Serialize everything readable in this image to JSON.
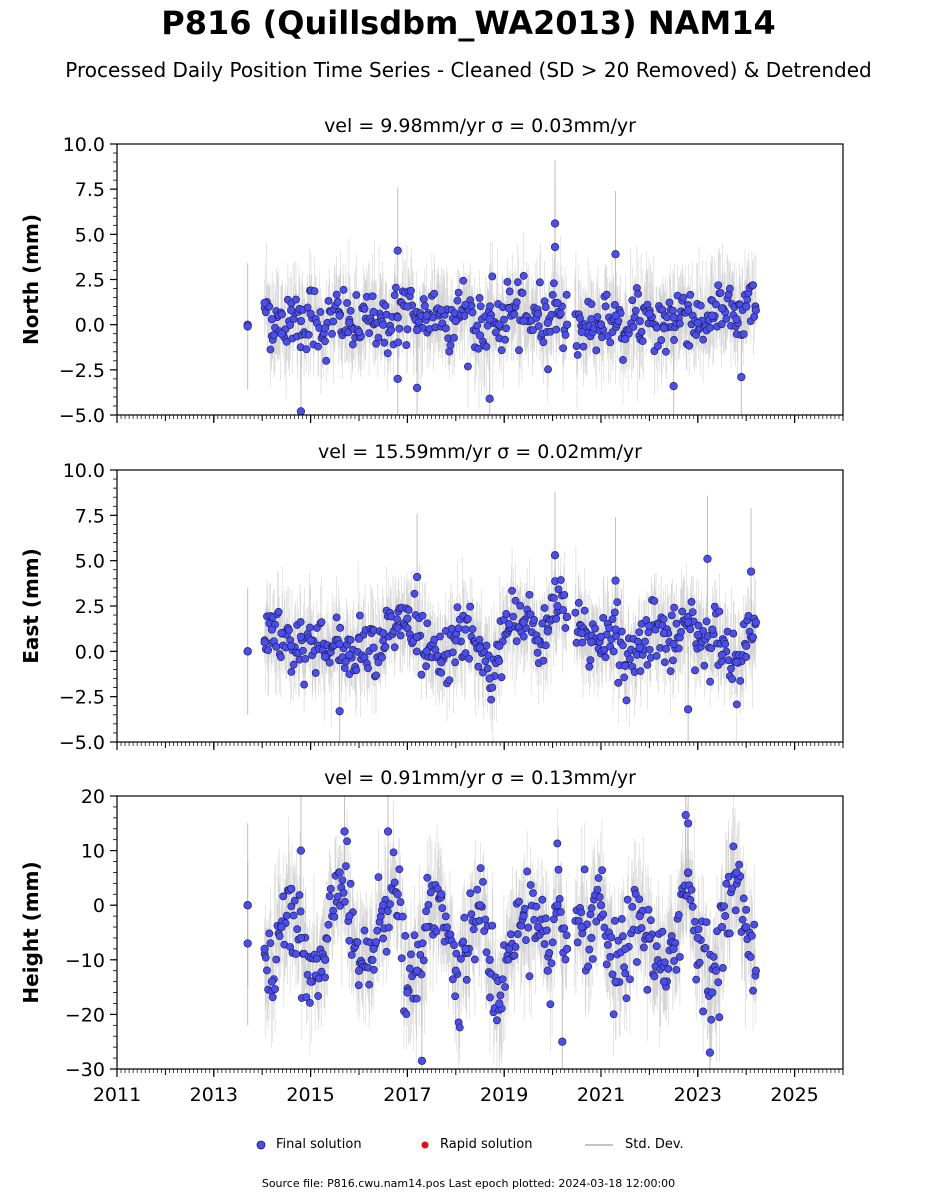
{
  "title": "P816 (Quillsdbm_WA2013) NAM14",
  "subtitle": "Processed Daily Position Time Series - Cleaned (SD > 20 Removed) & Detrended",
  "colors": {
    "final": "#4a4ef0",
    "final_edge": "#1a1a4a",
    "rapid": "#e01010",
    "stddev": "#b0b0b0"
  },
  "legend": {
    "final": "Final solution",
    "rapid": "Rapid solution",
    "stddev": "Std. Dev."
  },
  "footer": "Source file: P816.cwu.nam14.pos  Last epoch plotted: 2024-03-18 12:00:00",
  "chart_data": [
    {
      "type": "scatter",
      "panel": "north",
      "title": "vel = 9.98mm/yr   σ = 0.03mm/yr",
      "ylabel": "North (mm)",
      "xlim": [
        2011,
        2026
      ],
      "ylim": [
        -5,
        10
      ],
      "yticks": [
        -5,
        -2.5,
        0,
        2.5,
        5,
        7.5,
        10
      ],
      "ytick_labels": [
        "−5.0",
        "−2.5",
        "0.0",
        "2.5",
        "5.0",
        "7.5",
        "10.0"
      ],
      "xticks": [
        2011,
        2013,
        2015,
        2017,
        2019,
        2021,
        2023,
        2025
      ],
      "xtick_labels": [],
      "series": [
        {
          "name": "Final solution",
          "x": [
            2013.7,
            2014.05,
            2014.2,
            2014.4,
            2014.6,
            2014.8,
            2015.0,
            2015.3,
            2015.6,
            2015.8,
            2016.0,
            2016.3,
            2016.5,
            2016.8,
            2017.0,
            2017.2,
            2017.4,
            2017.7,
            2018.0,
            2018.2,
            2018.5,
            2018.7,
            2018.9,
            2019.1,
            2019.4,
            2019.7,
            2019.9,
            2020.1,
            2020.3,
            2020.6,
            2020.8,
            2021.0,
            2021.3,
            2021.5,
            2021.8,
            2022.0,
            2022.3,
            2022.5,
            2022.8,
            2023.0,
            2023.3,
            2023.5,
            2023.8,
            2024.0,
            2024.2
          ],
          "y": [
            0.0,
            1.2,
            0.3,
            -0.5,
            0.8,
            0.2,
            0.6,
            -0.2,
            0.5,
            0.1,
            -0.4,
            0.7,
            0.0,
            0.4,
            1.0,
            -0.3,
            0.5,
            0.8,
            0.2,
            1.1,
            -0.6,
            0.3,
            0.0,
            0.9,
            0.2,
            0.6,
            0.1,
            1.2,
            0.0,
            -0.4,
            0.3,
            0.0,
            0.5,
            -0.8,
            0.2,
            0.6,
            -0.2,
            0.4,
            0.8,
            0.1,
            0.5,
            0.9,
            0.3,
            1.0,
            0.8
          ]
        },
        {
          "name": "Final solution (outliers)",
          "x": [
            2013.7,
            2014.8,
            2016.8,
            2017.2,
            2018.7,
            2020.05,
            2020.05,
            2021.3,
            2016.8,
            2022.5,
            2023.9
          ],
          "y": [
            -0.1,
            -4.8,
            4.1,
            -3.5,
            -4.1,
            5.6,
            4.3,
            3.9,
            -3.0,
            -3.4,
            -2.9
          ]
        }
      ]
    },
    {
      "type": "scatter",
      "panel": "east",
      "title": "vel = 15.59mm/yr   σ = 0.02mm/yr",
      "ylabel": "East (mm)",
      "xlim": [
        2011,
        2026
      ],
      "ylim": [
        -5,
        10
      ],
      "yticks": [
        -5,
        -2.5,
        0,
        2.5,
        5,
        7.5,
        10
      ],
      "ytick_labels": [
        "−5.0",
        "−2.5",
        "0.0",
        "2.5",
        "5.0",
        "7.5",
        "10.0"
      ],
      "xticks": [
        2011,
        2013,
        2015,
        2017,
        2019,
        2021,
        2023,
        2025
      ],
      "xtick_labels": [],
      "series": [
        {
          "name": "Final solution",
          "x": [
            2013.7,
            2014.05,
            2014.2,
            2014.4,
            2014.6,
            2014.8,
            2015.0,
            2015.3,
            2015.6,
            2015.8,
            2016.0,
            2016.3,
            2016.5,
            2016.8,
            2017.0,
            2017.2,
            2017.4,
            2017.7,
            2018.0,
            2018.2,
            2018.5,
            2018.7,
            2018.9,
            2019.1,
            2019.4,
            2019.7,
            2019.9,
            2020.1,
            2020.3,
            2020.6,
            2020.8,
            2021.0,
            2021.3,
            2021.5,
            2021.8,
            2022.0,
            2022.3,
            2022.5,
            2022.8,
            2023.0,
            2023.3,
            2023.5,
            2023.8,
            2024.0,
            2024.2
          ],
          "y": [
            0.0,
            0.5,
            1.2,
            1.0,
            0.3,
            0.8,
            0.6,
            -0.3,
            0.4,
            -0.2,
            0.7,
            0.2,
            1.0,
            1.3,
            1.8,
            0.8,
            0.0,
            -0.6,
            0.6,
            1.2,
            0.2,
            -1.5,
            0.3,
            1.5,
            1.6,
            0.6,
            1.1,
            2.5,
            1.9,
            1.0,
            0.5,
            0.8,
            1.2,
            -0.8,
            0.2,
            1.4,
            1.0,
            0.4,
            1.6,
            0.9,
            1.2,
            -0.2,
            -0.6,
            0.3,
            1.6
          ]
        },
        {
          "name": "Final solution (outliers)",
          "x": [
            2013.7,
            2015.6,
            2017.2,
            2020.05,
            2021.3,
            2022.8,
            2023.2,
            2024.1
          ],
          "y": [
            0.0,
            -3.3,
            4.1,
            5.3,
            3.9,
            -3.2,
            5.1,
            4.4
          ]
        }
      ]
    },
    {
      "type": "scatter",
      "panel": "height",
      "title": "vel = 0.91mm/yr   σ = 0.13mm/yr",
      "ylabel": "Height (mm)",
      "xlim": [
        2011,
        2026
      ],
      "ylim": [
        -30,
        20
      ],
      "yticks": [
        -30,
        -20,
        -10,
        0,
        10,
        20
      ],
      "ytick_labels": [
        "−30",
        "−20",
        "−10",
        "0",
        "10",
        "20"
      ],
      "xticks": [
        2011,
        2013,
        2015,
        2017,
        2019,
        2021,
        2023,
        2025
      ],
      "xtick_labels": [
        "2011",
        "2013",
        "2015",
        "2017",
        "2019",
        "2021",
        "2023",
        "2025"
      ],
      "series": [
        {
          "name": "Final solution",
          "x": [
            2013.7,
            2014.05,
            2014.2,
            2014.4,
            2014.6,
            2014.8,
            2015.0,
            2015.3,
            2015.6,
            2015.8,
            2016.0,
            2016.3,
            2016.5,
            2016.8,
            2017.0,
            2017.2,
            2017.4,
            2017.7,
            2018.0,
            2018.2,
            2018.5,
            2018.7,
            2018.9,
            2019.1,
            2019.4,
            2019.7,
            2019.9,
            2020.1,
            2020.3,
            2020.6,
            2020.8,
            2021.0,
            2021.3,
            2021.5,
            2021.8,
            2022.0,
            2022.3,
            2022.5,
            2022.8,
            2023.0,
            2023.3,
            2023.5,
            2023.8,
            2024.0,
            2024.2
          ],
          "y": [
            0.0,
            -8.0,
            -14.0,
            -4.0,
            3.0,
            -6.0,
            -14.0,
            -10.0,
            6.0,
            -2.0,
            -12.0,
            -8.0,
            0.0,
            2.0,
            -16.0,
            -12.0,
            -4.0,
            2.0,
            -12.0,
            -8.0,
            0.0,
            -10.0,
            -18.0,
            -8.0,
            -2.0,
            -4.0,
            -12.0,
            0.0,
            -8.0,
            -4.0,
            -6.0,
            0.0,
            -14.0,
            -8.0,
            -2.0,
            -6.0,
            -14.0,
            -8.0,
            6.0,
            -6.0,
            -16.0,
            -4.0,
            6.0,
            -4.0,
            -12.0
          ]
        },
        {
          "name": "Final solution (outliers)",
          "x": [
            2013.7,
            2013.7,
            2014.8,
            2015.7,
            2016.6,
            2017.3,
            2020.2,
            2022.75,
            2022.8,
            2023.25
          ],
          "y": [
            0.0,
            -7.0,
            10.0,
            13.5,
            13.5,
            -28.5,
            -25.0,
            16.5,
            15.0,
            -27.0
          ]
        }
      ]
    }
  ]
}
